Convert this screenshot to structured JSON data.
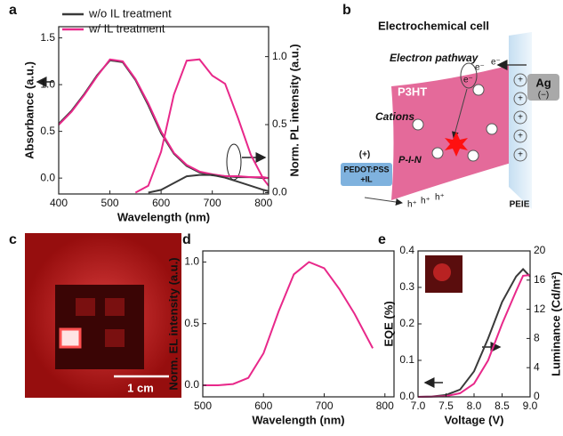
{
  "panel_labels": [
    "a",
    "b",
    "c",
    "d",
    "e"
  ],
  "chart_data": [
    {
      "type": "line",
      "x": [
        400,
        425,
        450,
        475,
        500,
        525,
        550,
        575,
        600,
        625,
        650,
        675,
        700,
        725,
        750,
        775,
        800,
        810
      ],
      "xlim": [
        400,
        810
      ],
      "xticks": [
        400,
        500,
        600,
        700,
        800
      ],
      "ylim": [
        -0.17,
        1.62
      ],
      "yticks": [
        {
          "value": 0,
          "label": "0.0"
        },
        0.5,
        {
          "value": 1,
          "label": "1.0"
        },
        1.5
      ],
      "y2lim": [
        -0.01,
        1.22
      ],
      "y2ticks": [
        {
          "value": 0,
          "label": "0.0"
        },
        0.5,
        {
          "value": 1,
          "label": "1.0"
        }
      ],
      "xlabel": "Wavelength (nm)",
      "ylabel": "Absorbance (a.u.)",
      "y2label": "Norm. PL intensity (a.u.)",
      "series": [
        {
          "name": "w/o  IL treatment",
          "color": "#3a3a3a",
          "values": [
            0.58,
            0.72,
            0.9,
            1.1,
            1.26,
            1.24,
            1.05,
            0.78,
            0.48,
            0.26,
            0.13,
            0.06,
            0.03,
            0.02,
            0.01,
            0.01,
            0.0,
            0.0
          ]
        },
        {
          "name": "w/  IL treatment",
          "color": "#e8288a",
          "values": [
            0.57,
            0.71,
            0.89,
            1.09,
            1.27,
            1.25,
            1.06,
            0.8,
            0.5,
            0.27,
            0.14,
            0.07,
            0.04,
            0.02,
            0.02,
            0.01,
            0.01,
            0.0
          ]
        },
        {
          "color": "#3a3a3a",
          "axis": "y2",
          "values": [
            null,
            null,
            null,
            null,
            null,
            null,
            null,
            0.0,
            0.02,
            0.07,
            0.12,
            0.13,
            0.13,
            0.11,
            0.08,
            0.05,
            0.02,
            0.01
          ]
        },
        {
          "color": "#e8288a",
          "axis": "y2",
          "values": [
            null,
            null,
            null,
            null,
            null,
            null,
            0.0,
            0.05,
            0.3,
            0.72,
            0.97,
            0.98,
            0.86,
            0.8,
            0.55,
            0.28,
            0.1,
            0.05
          ]
        }
      ]
    },
    {
      "type": "line",
      "x": [
        500,
        525,
        550,
        575,
        600,
        625,
        650,
        675,
        700,
        725,
        750,
        780
      ],
      "xlim": [
        500,
        815
      ],
      "xticks": [
        500,
        600,
        700,
        800
      ],
      "ylim": [
        -0.094,
        1.09
      ],
      "yticks": [
        {
          "value": 0,
          "label": "0.0"
        },
        0.5,
        {
          "value": 1,
          "label": "1.0"
        }
      ],
      "xlabel": "Wavelength (nm)",
      "ylabel": "Norm. EL intensity (a.u.)",
      "series": [
        {
          "color": "#e8288a",
          "values": [
            0.0,
            0.0,
            0.01,
            0.06,
            0.26,
            0.6,
            0.9,
            1.0,
            0.95,
            0.78,
            0.58,
            0.3
          ]
        }
      ]
    },
    {
      "type": "line",
      "x": [
        7.0,
        7.25,
        7.5,
        7.75,
        8.0,
        8.25,
        8.5,
        8.75,
        8.875,
        9.0
      ],
      "xlim": [
        7.0,
        9.0
      ],
      "xticks": [
        {
          "value": 7,
          "label": "7.0"
        },
        7.5,
        {
          "value": 8,
          "label": "8.0"
        },
        8.5,
        {
          "value": 9,
          "label": "9.0"
        }
      ],
      "ylim": [
        0,
        0.4
      ],
      "yticks": [
        {
          "value": 0,
          "label": "0.0"
        },
        0.1,
        0.2,
        0.3,
        0.4
      ],
      "y2lim": [
        0,
        20
      ],
      "y2ticks": [
        0,
        4,
        8,
        12,
        16,
        20
      ],
      "xlabel": "Voltage (V)",
      "ylabel": "EQE (%)",
      "y2label": "Luminance (Cd/m²)",
      "series": [
        {
          "color": "#3a3a3a",
          "values": [
            0.0,
            0.001,
            0.005,
            0.02,
            0.07,
            0.16,
            0.26,
            0.33,
            0.35,
            0.33
          ]
        },
        {
          "color": "#e8288a",
          "axis": "y2",
          "values": [
            0,
            0.02,
            0.1,
            0.5,
            1.8,
            5,
            10,
            14.5,
            16.6,
            16.7
          ]
        }
      ]
    }
  ],
  "diagram": {
    "title": "Electrochemical  cell",
    "electron_pathway": "Electron pathway",
    "electron": "e⁻",
    "active_layer": "P3HT",
    "cations": "Cations",
    "anode_sign": "(+)",
    "anode_line1": "PEDOT:PSS",
    "anode_line2": "+IL",
    "junction": "P-I-N",
    "cathode_layer": "PEIE",
    "cathode": "Ag",
    "cathode_sign": "(−)",
    "hole": "h⁺",
    "plus": "+"
  },
  "photo": {
    "scale_bar": "1 cm"
  }
}
